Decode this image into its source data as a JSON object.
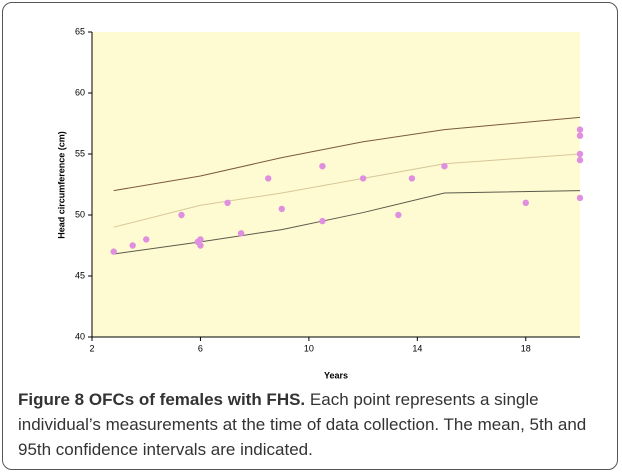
{
  "chart_data": {
    "type": "scatter",
    "xlabel": "Years",
    "ylabel": "Head circumference (cm)",
    "xlim": [
      2,
      20
    ],
    "ylim": [
      40,
      65
    ],
    "xticks": [
      2,
      6,
      10,
      14,
      18
    ],
    "yticks": [
      40,
      45,
      50,
      55,
      60,
      65
    ],
    "background": "#fefbd2",
    "series": [
      {
        "type": "line",
        "color": "#7a5a3c",
        "x": [
          2.8,
          6,
          9,
          12,
          15,
          20
        ],
        "values": [
          52,
          53.2,
          54.7,
          56,
          57,
          58
        ]
      },
      {
        "type": "line",
        "color": "#d8c79a",
        "x": [
          2.8,
          6,
          9,
          12,
          15,
          20
        ],
        "values": [
          49,
          50.8,
          51.8,
          53,
          54.2,
          55
        ]
      },
      {
        "type": "line",
        "color": "#5c5a4a",
        "x": [
          2.8,
          6,
          9,
          12,
          15,
          20
        ],
        "values": [
          46.8,
          47.8,
          48.8,
          50.2,
          51.8,
          52
        ]
      },
      {
        "type": "scatter",
        "color": "#e08ee0",
        "x": [
          2.8,
          3.5,
          4,
          5.3,
          5.9,
          6,
          6,
          7,
          7.5,
          8.5,
          9,
          10.5,
          10.5,
          12,
          13.3,
          13.8,
          15,
          18,
          20,
          20,
          20,
          20,
          20
        ],
        "values": [
          47,
          47.5,
          48,
          50,
          47.8,
          48,
          47.5,
          51,
          48.5,
          53,
          50.5,
          54,
          49.5,
          53,
          50,
          53,
          54,
          51,
          57,
          56.5,
          55,
          54.5,
          51.4
        ]
      }
    ]
  },
  "caption": {
    "label": "Figure 8 OFCs of females with FHS.",
    "text": "Each point represents a single individual’s measurements at the time of data collection. The mean, 5th and 95th confidence intervals are indicated."
  }
}
